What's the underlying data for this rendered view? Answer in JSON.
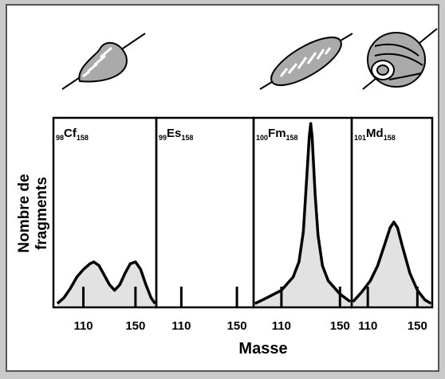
{
  "labels": {
    "x": "Masse",
    "y": [
      "Nombre de",
      "fragments"
    ]
  },
  "chart_data": [
    {
      "type": "line",
      "panel_label": {
        "z": "98",
        "symbol": "Cf",
        "n": "158"
      },
      "x": [
        90,
        95,
        100,
        105,
        110,
        115,
        118,
        122,
        126,
        130,
        134,
        138,
        142,
        146,
        150,
        154,
        158,
        162,
        165
      ],
      "values": [
        2,
        5,
        10,
        16,
        20,
        23,
        24,
        22,
        17,
        12,
        9,
        12,
        18,
        23,
        24,
        20,
        12,
        5,
        2
      ],
      "xlim": [
        87,
        166
      ],
      "xticks": [
        110,
        150
      ],
      "ylim": [
        0,
        100
      ]
    },
    {
      "type": "line",
      "panel_label": {
        "z": "99",
        "symbol": "Es",
        "n": "158"
      },
      "x": [],
      "values": [],
      "xlim": [
        92,
        162
      ],
      "xticks": [
        110,
        150
      ],
      "ylim": [
        0,
        100
      ]
    },
    {
      "type": "line",
      "panel_label": {
        "z": "100",
        "symbol": "Fm",
        "n": "158"
      },
      "x": [
        92,
        100,
        110,
        118,
        122,
        125,
        127,
        129,
        130,
        131,
        133,
        135,
        138,
        142,
        150,
        157
      ],
      "values": [
        2,
        5,
        9,
        16,
        24,
        40,
        65,
        90,
        97,
        90,
        60,
        38,
        22,
        14,
        7,
        3
      ],
      "xlim": [
        91,
        158
      ],
      "xticks": [
        110,
        150
      ],
      "ylim": [
        0,
        100
      ]
    },
    {
      "type": "line",
      "panel_label": {
        "z": "101",
        "symbol": "Md",
        "n": "158"
      },
      "x": [
        98,
        105,
        112,
        118,
        124,
        128,
        131,
        134,
        138,
        144,
        150,
        156,
        161
      ],
      "values": [
        3,
        8,
        14,
        22,
        34,
        42,
        45,
        42,
        32,
        18,
        9,
        4,
        2
      ],
      "xlim": [
        97,
        162
      ],
      "xticks": [
        110,
        150
      ],
      "ylim": [
        0,
        100
      ]
    }
  ]
}
